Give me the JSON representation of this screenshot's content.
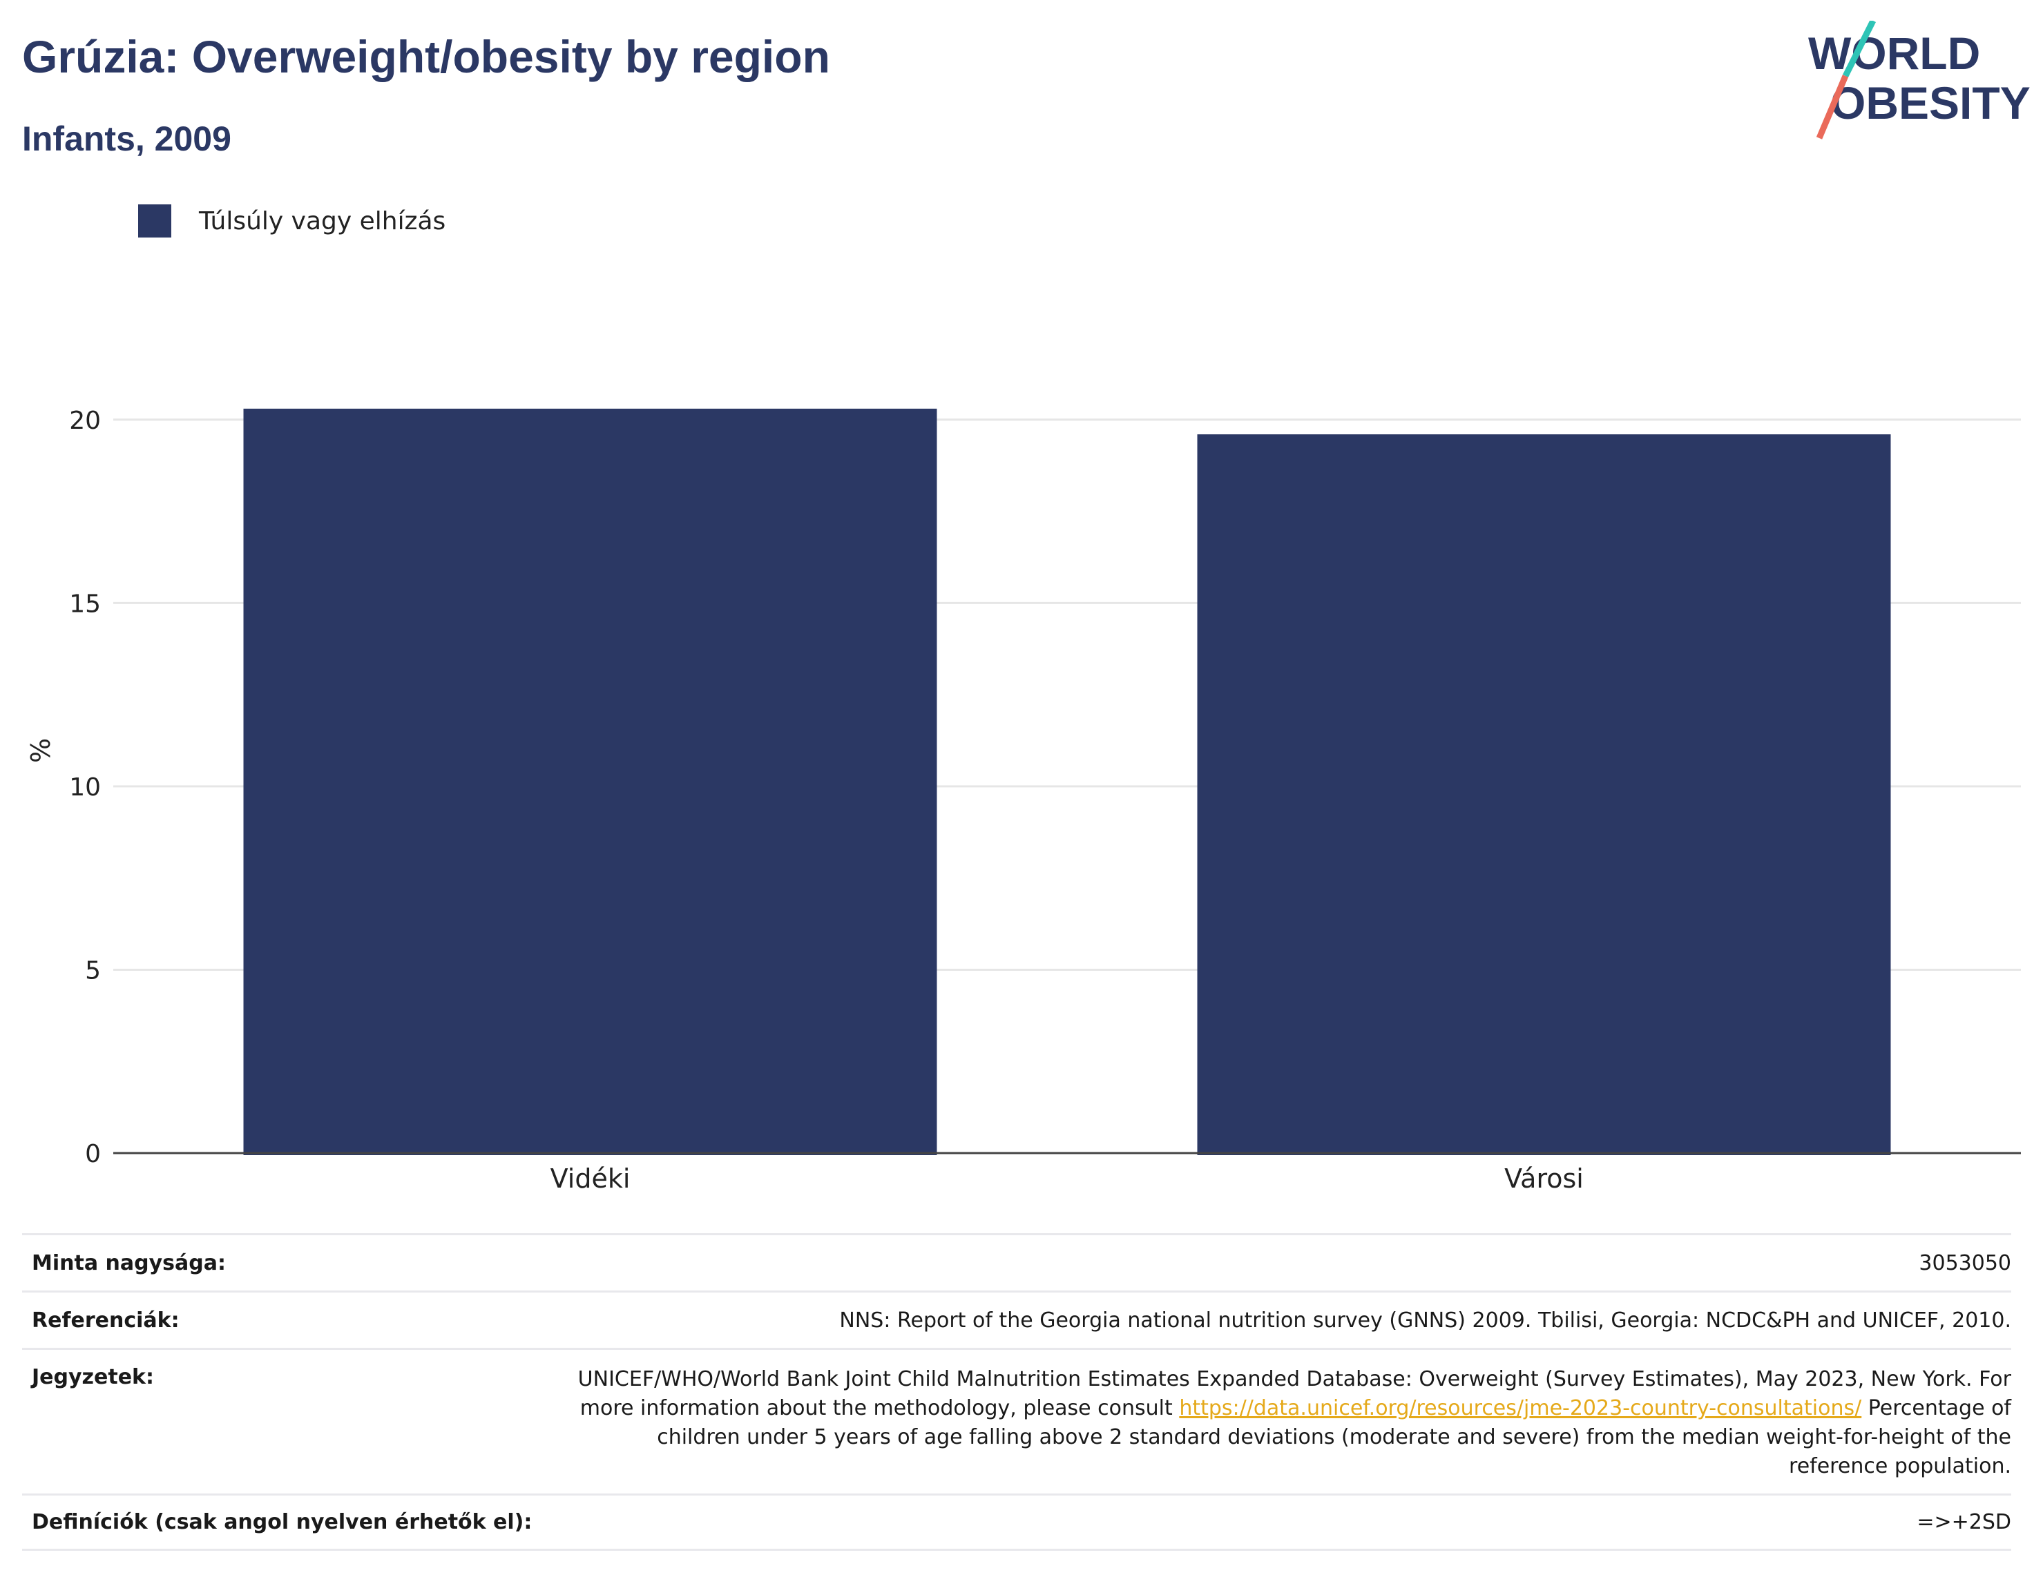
{
  "header": {
    "title": "Grúzia: Overweight/obesity by region",
    "subtitle": "Infants, 2009"
  },
  "logo": {
    "line1": "WORLD",
    "line2": "OBESITY"
  },
  "colors": {
    "bar": "#2b3864",
    "title": "#2b3864",
    "link": "#e5a91a",
    "grid": "#e6e6e6"
  },
  "chart_data": {
    "type": "bar",
    "categories": [
      "Vidéki",
      "Városi"
    ],
    "series": [
      {
        "name": "Túlsúly vagy elhízás",
        "values": [
          20.3,
          19.6
        ]
      }
    ],
    "ylabel": "%",
    "xlabel": "",
    "ylim": [
      0,
      20.9
    ],
    "yticks": [
      0,
      5,
      10,
      15,
      20
    ],
    "grid": true,
    "legend": "top-left"
  },
  "info": {
    "sample_label": "Minta nagysága:",
    "sample_value": "3053050",
    "ref_label": "Referenciák:",
    "ref_value": "NNS: Report of the Georgia national nutrition survey (GNNS) 2009. Tbilisi, Georgia: NCDC&PH and UNICEF, 2010.",
    "notes_label": "Jegyzetek:",
    "notes_part1": "UNICEF/WHO/World Bank Joint Child Malnutrition Estimates Expanded Database: Overweight (Survey Estimates), May 2023, New York. For more information about the methodology, please consult",
    "notes_link": "https://data.unicef.org/resources/jme-2023-country-consultations/",
    "notes_part2": "Percentage of children under 5 years of age falling above 2 standard deviations (moderate and severe) from the median weight-for-height of the reference population.",
    "def_label": "Definíciók (csak angol nyelven érhetők el):",
    "def_value": "=>+2SD"
  }
}
